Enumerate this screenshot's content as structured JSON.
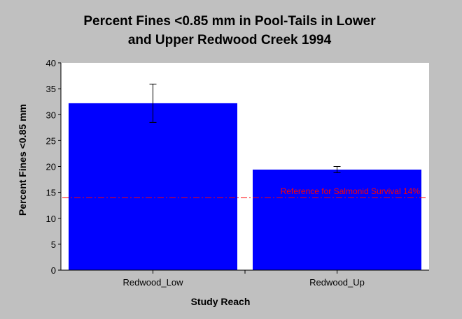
{
  "chart_data": {
    "type": "bar",
    "title_lines": [
      "Percent Fines <0.85 mm in Pool-Tails in Lower",
      "and Upper Redwood Creek 1994"
    ],
    "xlabel": "Study Reach",
    "ylabel": "Percent Fines <0.85 mm",
    "categories": [
      "Redwood_Low",
      "Redwood_Up"
    ],
    "values": [
      32.2,
      19.4
    ],
    "error_bars": [
      {
        "low": 28.5,
        "high": 35.9
      },
      {
        "low": 18.8,
        "high": 20.0
      }
    ],
    "ylim": [
      0,
      40
    ],
    "yticks": [
      0,
      5,
      10,
      15,
      20,
      25,
      30,
      35,
      40
    ],
    "grid": false,
    "bar_color": "#0000ff",
    "reference_line": {
      "value": 14,
      "label": "Reference for Salmonid Survival 14%",
      "color": "#ff0000"
    }
  }
}
